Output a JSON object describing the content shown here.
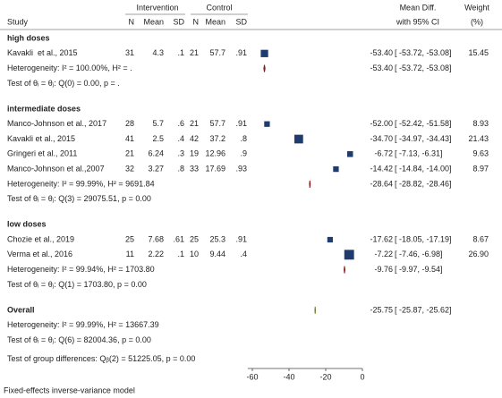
{
  "chart_data": {
    "type": "forest",
    "columns": {
      "study": "Study",
      "group1": "Intervention",
      "group2": "Control",
      "n1": "N",
      "mean1": "Mean",
      "sd1": "SD",
      "n2": "N",
      "mean2": "Mean",
      "sd2": "SD",
      "effect": "Mean Diff.",
      "ci": "with 95% CI",
      "weight": "Weight",
      "weight_unit": "(%)"
    },
    "xlim": [
      -62.5,
      0
    ],
    "xticks": [
      -60,
      -40,
      -20,
      0
    ],
    "study_color": "#1f3c6e",
    "subtotal_color": "#8b1a1a",
    "overall_color": "#6b7a2a",
    "groups": [
      {
        "name": "high doses",
        "studies": [
          {
            "study": "Kavakli  et al., 2015",
            "n1": 31,
            "mean1": 4.3,
            "sd1": {
              "value": 0.1,
              "label": ".1"
            },
            "n2": 21,
            "mean2": 57.7,
            "sd2": {
              "value": 0.91,
              "label": ".91"
            },
            "effect": {
              "value": -53.4,
              "label": "-53.40"
            },
            "ci_low": -53.72,
            "ci_high": -53.08,
            "ci_label": "[ -53.72, -53.08]",
            "weight": 15.45
          }
        ],
        "heterogeneity": "Heterogeneity: I² = 100.00%, H² = .",
        "test": "Test of θᵢ = θⱼ: Q(0) = 0.00, p = .",
        "effect": {
          "value": -53.4,
          "label": "-53.40"
        },
        "ci_low": -53.72,
        "ci_high": -53.08,
        "ci_label": "[ -53.72, -53.08]"
      },
      {
        "name": "intermediate doses",
        "studies": [
          {
            "study": "Manco-Johnson et al., 2017",
            "n1": 28,
            "mean1": 5.7,
            "sd1": {
              "value": 0.6,
              "label": ".6"
            },
            "n2": 21,
            "mean2": 57.7,
            "sd2": {
              "value": 0.91,
              "label": ".91"
            },
            "effect": {
              "value": -52,
              "label": "-52.00"
            },
            "ci_low": -52.42,
            "ci_high": -51.58,
            "ci_label": "[ -52.42, -51.58]",
            "weight": 8.93
          },
          {
            "study": "Kavakli et al., 2015",
            "n1": 41,
            "mean1": 2.5,
            "sd1": {
              "value": 0.4,
              "label": ".4"
            },
            "n2": 42,
            "mean2": 37.2,
            "sd2": {
              "value": 0.8,
              "label": ".8"
            },
            "effect": {
              "value": -34.7,
              "label": "-34.70"
            },
            "ci_low": -34.97,
            "ci_high": -34.43,
            "ci_label": "[ -34.97, -34.43]",
            "weight": 21.43
          },
          {
            "study": "Gringeri et al., 2011",
            "n1": 21,
            "mean1": 6.24,
            "sd1": {
              "value": 0.3,
              "label": ".3"
            },
            "n2": 19,
            "mean2": 12.96,
            "sd2": {
              "value": 0.9,
              "label": ".9"
            },
            "effect": -6.72,
            "ci_low": -7.13,
            "ci_high": -6.31,
            "ci_label": "[ -7.13, -6.31]",
            "weight": 9.63
          },
          {
            "study": "Manco-Johnson et al.,2007",
            "n1": 32,
            "mean1": 3.27,
            "sd1": {
              "value": 0.8,
              "label": ".8"
            },
            "n2": 33,
            "mean2": 17.69,
            "sd2": {
              "value": 0.93,
              "label": ".93"
            },
            "effect": -14.42,
            "ci_low": -14.84,
            "ci_high": -14,
            "ci_label": "[ -14.84, -14.00]",
            "weight": 8.97
          }
        ],
        "heterogeneity": "Heterogeneity: I² = 99.99%, H² = 9691.84",
        "test": "Test of θᵢ = θⱼ: Q(3) = 29075.51, p = 0.00",
        "effect": -28.64,
        "ci_low": -28.82,
        "ci_high": -28.46,
        "ci_label": "[ -28.82, -28.46]"
      },
      {
        "name": "low doses",
        "studies": [
          {
            "study": "Chozie et al., 2019",
            "n1": 25,
            "mean1": 7.68,
            "sd1": {
              "value": 0.61,
              "label": ".61"
            },
            "n2": 25,
            "mean2": 25.3,
            "sd2": {
              "value": 0.91,
              "label": ".91"
            },
            "effect": -17.62,
            "ci_low": -18.05,
            "ci_high": -17.19,
            "ci_label": "[ -18.05, -17.19]",
            "weight": 8.67
          },
          {
            "study": "Verma et al., 2016",
            "n1": 11,
            "mean1": 2.22,
            "sd1": {
              "value": 0.1,
              "label": ".1"
            },
            "n2": 10,
            "mean2": 9.44,
            "sd2": {
              "value": 0.4,
              "label": ".4"
            },
            "effect": -7.22,
            "ci_low": -7.46,
            "ci_high": -6.98,
            "ci_label": "[ -7.46, -6.98]",
            "weight": {
              "value": 26.9,
              "label": "26.90"
            }
          }
        ],
        "heterogeneity": "Heterogeneity: I² = 99.94%, H² = 1703.80",
        "test": "Test of θᵢ = θⱼ: Q(1) = 1703.80, p = 0.00",
        "effect": -9.76,
        "ci_low": -9.97,
        "ci_high": -9.54,
        "ci_label": "[ -9.97, -9.54]"
      }
    ],
    "overall": {
      "name": "Overall",
      "heterogeneity": "Heterogeneity: I² = 99.99%, H² = 13667.39",
      "test": "Test of θᵢ = θⱼ: Q(6) = 82004.36, p = 0.00",
      "effect": -25.75,
      "ci_low": -25.87,
      "ci_high": -25.62,
      "ci_label": "[ -25.87, -25.62]"
    },
    "group_test": "Test of group differences: Qᵦ(2) = 51225.05, p = 0.00",
    "footnote": "Fixed-effects inverse-variance model"
  }
}
